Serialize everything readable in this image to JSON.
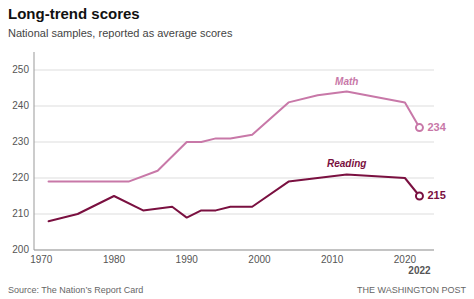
{
  "chart_data": {
    "type": "line",
    "title": "Long-trend scores",
    "subtitle": "National samples, reported as average scores",
    "series": [
      {
        "name": "Math",
        "color": "#c878a8",
        "x": [
          1971,
          1973,
          1978,
          1982,
          1986,
          1990,
          1992,
          1994,
          1996,
          1999,
          2004,
          2008,
          2012,
          2020,
          2022
        ],
        "values": [
          219,
          219,
          219,
          219,
          222,
          230,
          230,
          231,
          231,
          232,
          241,
          243,
          244,
          241,
          234
        ]
      },
      {
        "name": "Reading",
        "color": "#7a1040",
        "x": [
          1971,
          1975,
          1980,
          1984,
          1988,
          1990,
          1992,
          1994,
          1996,
          1999,
          2004,
          2008,
          2012,
          2020,
          2022
        ],
        "values": [
          208,
          210,
          215,
          211,
          212,
          209,
          211,
          211,
          212,
          212,
          219,
          220,
          221,
          220,
          215
        ]
      }
    ],
    "xlim": [
      1969,
      2024
    ],
    "xticks": [
      1970,
      1980,
      1990,
      2000,
      2010,
      2020,
      2022
    ],
    "ylim": [
      200,
      255
    ],
    "yticks": [
      200,
      210,
      220,
      230,
      240,
      250
    ],
    "grid": true,
    "annotations": [
      {
        "text": "234",
        "x": 2022,
        "y": 234
      },
      {
        "text": "215",
        "x": 2022,
        "y": 215
      },
      {
        "text": "Source: The Nation’s Report Card"
      },
      {
        "text": "THE WASHINGTON POST"
      }
    ]
  }
}
